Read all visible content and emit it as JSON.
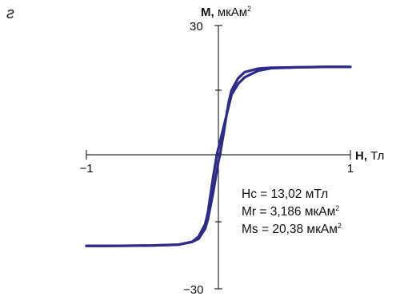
{
  "panel_label": "г",
  "chart_data": {
    "type": "line",
    "x_axis": {
      "name": "H,",
      "unit": "Тл",
      "min": -1,
      "max": 1,
      "tick_labels": {
        "min": "−1",
        "max": "1"
      }
    },
    "y_axis": {
      "name": "M,",
      "unit": "мкАм",
      "unit_sup": "2",
      "min": -30,
      "max": 30,
      "tick_labels": {
        "min": "−30",
        "max": "30"
      }
    },
    "series": [
      {
        "color": "#2e2a8c",
        "branch": "descending",
        "x": [
          1.0,
          0.8,
          0.6,
          0.4,
          0.3,
          0.2,
          0.15,
          0.1,
          0.08,
          0.06,
          0.04,
          0.02,
          0.0,
          -0.013,
          -0.02,
          -0.04,
          -0.06,
          -0.08,
          -0.1,
          -0.15,
          -0.2,
          -0.3,
          -0.5,
          -0.8,
          -1.0
        ],
        "y": [
          20.4,
          20.4,
          20.3,
          20.1,
          19.5,
          18.0,
          16.5,
          14.0,
          11.5,
          9.0,
          6.5,
          4.0,
          1.5,
          0.0,
          -1.5,
          -5.0,
          -9.0,
          -13.0,
          -15.5,
          -18.3,
          -19.5,
          -20.1,
          -20.3,
          -20.4,
          -20.4
        ]
      },
      {
        "color": "#2e2a8c",
        "branch": "ascending",
        "x": [
          -1.0,
          -0.8,
          -0.5,
          -0.3,
          -0.2,
          -0.15,
          -0.1,
          -0.08,
          -0.06,
          -0.04,
          -0.02,
          0.0,
          0.013,
          0.02,
          0.04,
          0.06,
          0.08,
          0.1,
          0.15,
          0.2,
          0.3,
          0.4,
          0.6,
          0.8,
          1.0
        ],
        "y": [
          -20.4,
          -20.4,
          -20.3,
          -20.1,
          -19.5,
          -18.8,
          -16.5,
          -14.5,
          -11.5,
          -8.5,
          -5.0,
          -1.5,
          0.0,
          1.5,
          5.0,
          9.0,
          12.5,
          15.0,
          17.8,
          19.2,
          20.0,
          20.2,
          20.3,
          20.4,
          20.4
        ]
      }
    ],
    "annotations": [
      {
        "text": "Hc = 13,02 мТл",
        "sup": ""
      },
      {
        "text": "Mr = 3,186 мкАм",
        "sup": "2"
      },
      {
        "text": "Ms = 20,38 мкАм",
        "sup": "2"
      }
    ],
    "grid": false,
    "legend": "none"
  }
}
